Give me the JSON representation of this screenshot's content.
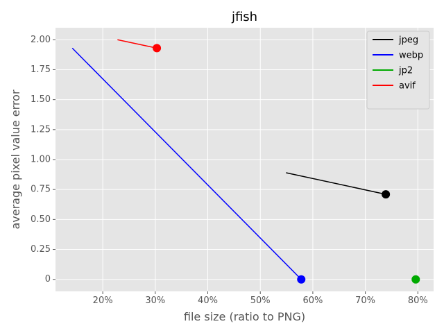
{
  "chart_data": {
    "type": "line",
    "title": "jfish",
    "xlabel": "file size (ratio to PNG)",
    "ylabel": "average pixel value error",
    "xlim": [
      0.11,
      0.83
    ],
    "ylim": [
      -0.1,
      2.1
    ],
    "x_ticks": [
      0.2,
      0.3,
      0.4,
      0.5,
      0.6,
      0.7,
      0.8
    ],
    "x_tick_labels": [
      "20%",
      "30%",
      "40%",
      "50%",
      "60%",
      "70%",
      "80%"
    ],
    "y_ticks": [
      0,
      0.25,
      0.5,
      0.75,
      1.0,
      1.25,
      1.5,
      1.75,
      2.0
    ],
    "y_tick_labels": [
      "0",
      "0.25",
      "0.50",
      "0.75",
      "1.00",
      "1.25",
      "1.50",
      "1.75",
      "2.00"
    ],
    "grid": true,
    "legend_position": "top-right",
    "series": [
      {
        "name": "jpeg",
        "color": "#000000",
        "x": [
          0.549,
          0.739
        ],
        "y": [
          0.89,
          0.71
        ],
        "marker": {
          "x": 0.739,
          "y": 0.71
        }
      },
      {
        "name": "webp",
        "color": "#0000ff",
        "x": [
          0.142,
          0.578
        ],
        "y": [
          1.93,
          0.0
        ],
        "marker": {
          "x": 0.578,
          "y": 0.0
        }
      },
      {
        "name": "jp2",
        "color": "#00aa00",
        "x": [
          0.796
        ],
        "y": [
          0.0
        ],
        "marker": {
          "x": 0.796,
          "y": 0.0
        }
      },
      {
        "name": "avif",
        "color": "#ff0000",
        "x": [
          0.228,
          0.303
        ],
        "y": [
          2.0,
          1.93
        ],
        "marker": {
          "x": 0.303,
          "y": 1.93
        }
      }
    ]
  }
}
